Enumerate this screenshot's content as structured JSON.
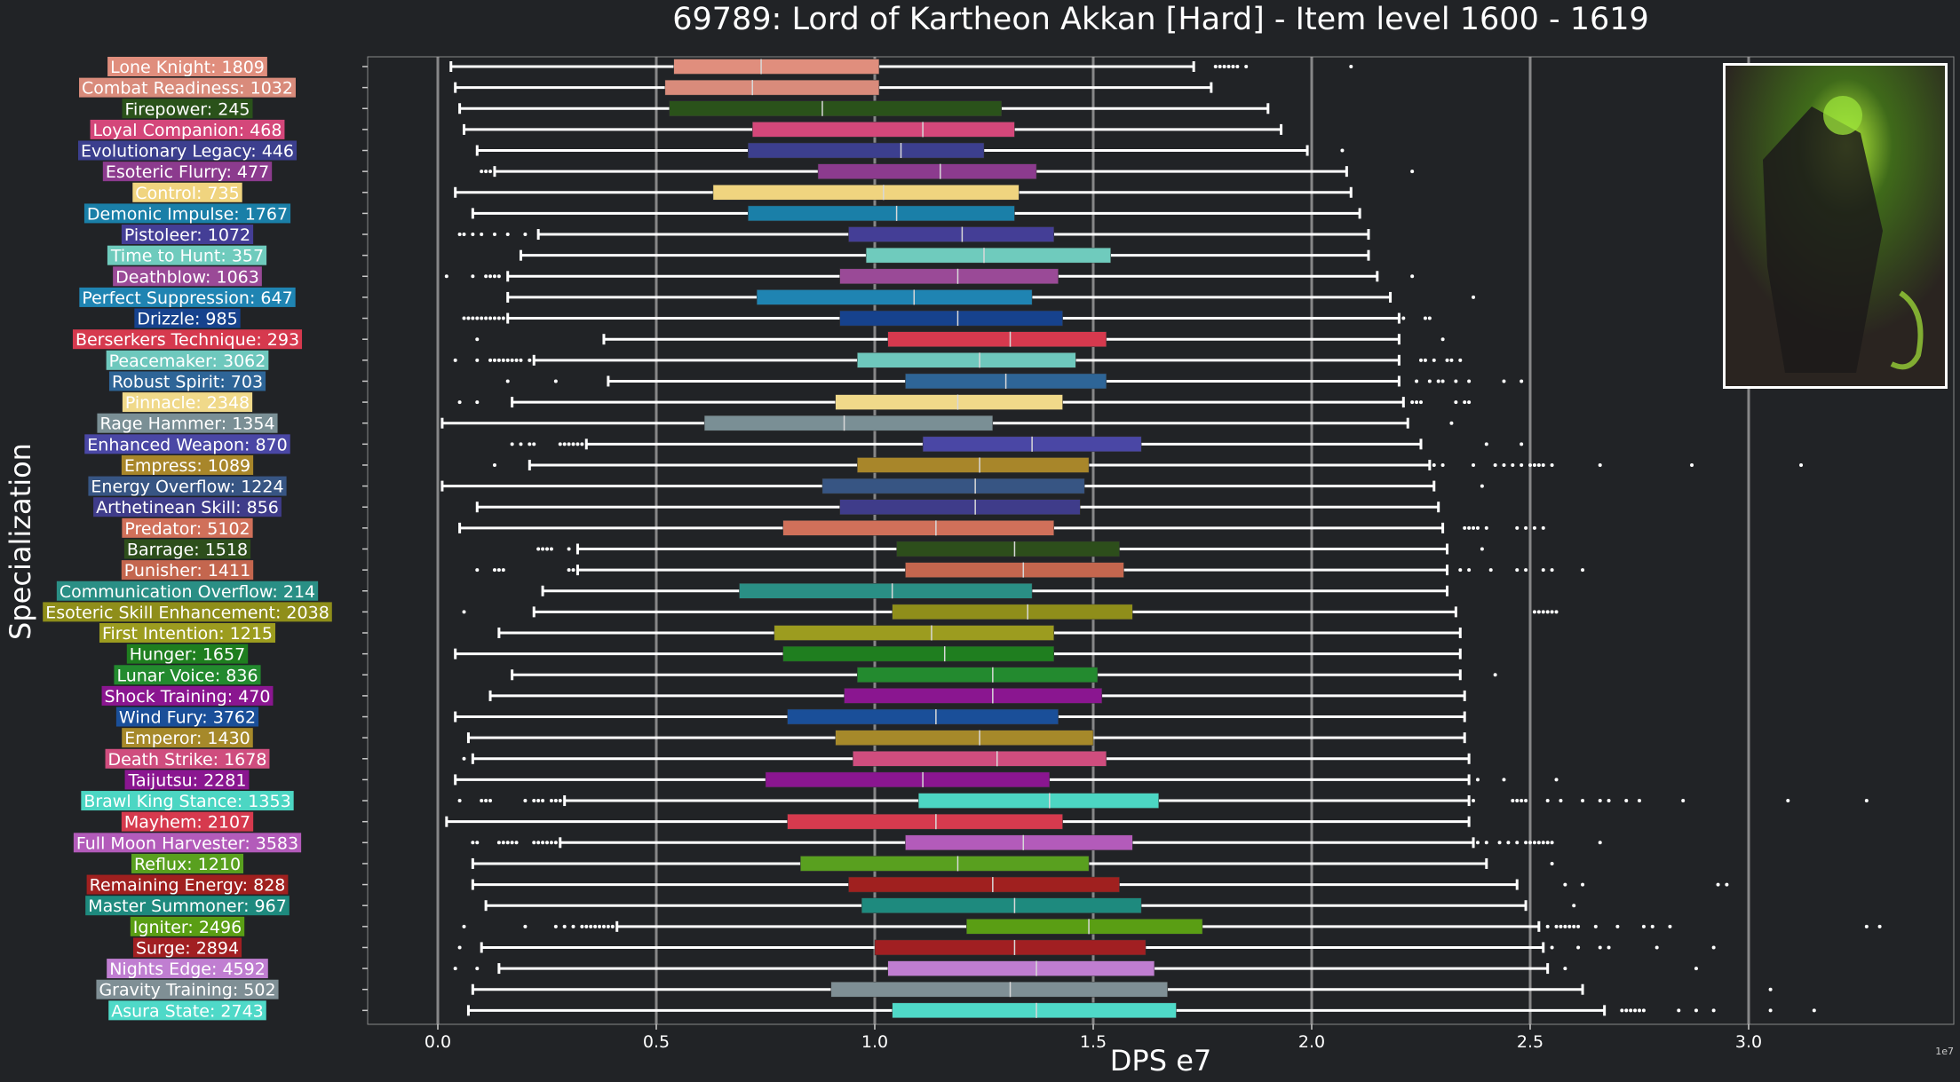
{
  "chart_data": {
    "type": "box",
    "title": "69789: Lord of Kartheon Akkan [Hard] - Item level 1600 - 1619",
    "xlabel": "DPS e7",
    "ylabel": "Specialization",
    "x_scale_note": "1e7",
    "xlim": [
      -0.16,
      3.42
    ],
    "xticks": [
      "0.0",
      "0.5",
      "1.0",
      "1.5",
      "2.0",
      "2.5",
      "3.0"
    ],
    "xtick_values": [
      0.0,
      0.5,
      1.0,
      1.5,
      2.0,
      2.5,
      3.0
    ],
    "grid": "vertical",
    "series": [
      {
        "label": "Lone Knight: 1809",
        "color": "#e08e7d",
        "whisker_low": 0.03,
        "q1": 0.54,
        "median": 0.74,
        "q3": 1.01,
        "whisker_high": 1.73,
        "outliers": [
          1.78,
          1.79,
          1.8,
          1.81,
          1.82,
          1.83,
          1.85,
          2.09
        ]
      },
      {
        "label": "Combat Readiness: 1032",
        "color": "#d98b7b",
        "whisker_low": 0.04,
        "q1": 0.52,
        "median": 0.72,
        "q3": 1.01,
        "whisker_high": 1.77,
        "outliers": []
      },
      {
        "label": "Firepower: 245",
        "color": "#2a521a",
        "whisker_low": 0.05,
        "q1": 0.53,
        "median": 0.88,
        "q3": 1.29,
        "whisker_high": 1.9,
        "outliers": []
      },
      {
        "label": "Loyal Companion: 468",
        "color": "#d4477a",
        "whisker_low": 0.06,
        "q1": 0.72,
        "median": 1.11,
        "q3": 1.32,
        "whisker_high": 1.93,
        "outliers": []
      },
      {
        "label": "Evolutionary Legacy: 446",
        "color": "#3c3f8e",
        "whisker_low": 0.09,
        "q1": 0.71,
        "median": 1.06,
        "q3": 1.25,
        "whisker_high": 1.99,
        "outliers": [
          2.07
        ]
      },
      {
        "label": "Esoteric Flurry: 477",
        "color": "#8c3b8e",
        "whisker_low": 0.13,
        "q1": 0.87,
        "median": 1.15,
        "q3": 1.37,
        "whisker_high": 2.08,
        "outliers": [
          0.1,
          0.11,
          0.12,
          2.23
        ]
      },
      {
        "label": "Control: 735",
        "color": "#f0d47f",
        "whisker_low": 0.04,
        "q1": 0.63,
        "median": 1.02,
        "q3": 1.33,
        "whisker_high": 2.09,
        "outliers": []
      },
      {
        "label": "Demonic Impulse: 1767",
        "color": "#1a7fa8",
        "whisker_low": 0.08,
        "q1": 0.71,
        "median": 1.05,
        "q3": 1.32,
        "whisker_high": 2.11,
        "outliers": []
      },
      {
        "label": "Pistoleer: 1072",
        "color": "#443e96",
        "whisker_low": 0.23,
        "q1": 0.94,
        "median": 1.2,
        "q3": 1.41,
        "whisker_high": 2.13,
        "outliers": [
          0.05,
          0.06,
          0.08,
          0.1,
          0.13,
          0.16,
          0.2
        ]
      },
      {
        "label": "Time to Hunt: 357",
        "color": "#6fcbbd",
        "whisker_low": 0.19,
        "q1": 0.98,
        "median": 1.25,
        "q3": 1.54,
        "whisker_high": 2.13,
        "outliers": []
      },
      {
        "label": "Deathblow: 1063",
        "color": "#9a4a97",
        "whisker_low": 0.16,
        "q1": 0.92,
        "median": 1.19,
        "q3": 1.42,
        "whisker_high": 2.15,
        "outliers": [
          0.02,
          0.08,
          0.11,
          0.12,
          0.13,
          0.14,
          2.23
        ]
      },
      {
        "label": "Perfect Suppression: 647",
        "color": "#1f84b2",
        "whisker_low": 0.16,
        "q1": 0.73,
        "median": 1.09,
        "q3": 1.36,
        "whisker_high": 2.18,
        "outliers": [
          2.37
        ]
      },
      {
        "label": "Drizzle: 985",
        "color": "#16428d",
        "whisker_low": 0.16,
        "q1": 0.92,
        "median": 1.19,
        "q3": 1.43,
        "whisker_high": 2.2,
        "outliers": [
          0.06,
          0.07,
          0.08,
          0.09,
          0.1,
          0.11,
          0.12,
          0.13,
          0.14,
          0.15,
          2.21,
          2.26,
          2.27
        ]
      },
      {
        "label": "Berserkers Technique: 293",
        "color": "#d6394e",
        "whisker_low": 0.38,
        "q1": 1.03,
        "median": 1.31,
        "q3": 1.53,
        "whisker_high": 2.2,
        "outliers": [
          0.09,
          2.3
        ]
      },
      {
        "label": "Peacemaker: 3062",
        "color": "#6ec8bd",
        "whisker_low": 0.22,
        "q1": 0.96,
        "median": 1.24,
        "q3": 1.46,
        "whisker_high": 2.2,
        "outliers": [
          0.04,
          0.09,
          0.12,
          0.13,
          0.14,
          0.15,
          0.16,
          0.17,
          0.18,
          0.19,
          0.21,
          2.25,
          2.26,
          2.28,
          2.31,
          2.32,
          2.34
        ]
      },
      {
        "label": "Robust Spirit: 703",
        "color": "#2e6597",
        "whisker_low": 0.39,
        "q1": 1.07,
        "median": 1.3,
        "q3": 1.53,
        "whisker_high": 2.2,
        "outliers": [
          0.16,
          0.27,
          2.24,
          2.27,
          2.29,
          2.3,
          2.33,
          2.36,
          2.44,
          2.48
        ]
      },
      {
        "label": "Pinnacle: 2348",
        "color": "#f0d98a",
        "whisker_low": 0.17,
        "q1": 0.91,
        "median": 1.19,
        "q3": 1.43,
        "whisker_high": 2.21,
        "outliers": [
          0.05,
          0.09,
          2.23,
          2.24,
          2.25,
          2.33,
          2.35,
          2.36
        ]
      },
      {
        "label": "Rage Hammer: 1354",
        "color": "#7a8f95",
        "whisker_low": 0.01,
        "q1": 0.61,
        "median": 0.93,
        "q3": 1.27,
        "whisker_high": 2.22,
        "outliers": [
          2.32
        ]
      },
      {
        "label": "Enhanced Weapon: 870",
        "color": "#4a47a5",
        "whisker_low": 0.34,
        "q1": 1.11,
        "median": 1.36,
        "q3": 1.61,
        "whisker_high": 2.25,
        "outliers": [
          0.17,
          0.19,
          0.21,
          0.22,
          0.28,
          0.29,
          0.3,
          0.31,
          0.32,
          0.33,
          2.4,
          2.48
        ]
      },
      {
        "label": "Empress: 1089",
        "color": "#a8862a",
        "whisker_low": 0.21,
        "q1": 0.96,
        "median": 1.24,
        "q3": 1.49,
        "whisker_high": 2.27,
        "outliers": [
          0.13,
          2.28,
          2.3,
          2.37,
          2.42,
          2.44,
          2.46,
          2.48,
          2.5,
          2.51,
          2.52,
          2.53,
          2.55,
          2.66,
          2.87,
          3.12
        ]
      },
      {
        "label": "Energy Overflow: 1224",
        "color": "#375583",
        "whisker_low": 0.01,
        "q1": 0.88,
        "median": 1.23,
        "q3": 1.48,
        "whisker_high": 2.28,
        "outliers": [
          2.39
        ]
      },
      {
        "label": "Arthetinean Skill: 856",
        "color": "#3f3c8a",
        "whisker_low": 0.09,
        "q1": 0.92,
        "median": 1.23,
        "q3": 1.47,
        "whisker_high": 2.29,
        "outliers": []
      },
      {
        "label": "Predator: 5102",
        "color": "#d0705a",
        "whisker_low": 0.05,
        "q1": 0.79,
        "median": 1.14,
        "q3": 1.41,
        "whisker_high": 2.3,
        "outliers": [
          2.35,
          2.36,
          2.37,
          2.38,
          2.4,
          2.47,
          2.49,
          2.51,
          2.53
        ]
      },
      {
        "label": "Barrage: 1518",
        "color": "#2d4e1b",
        "whisker_low": 0.32,
        "q1": 1.05,
        "median": 1.32,
        "q3": 1.56,
        "whisker_high": 2.31,
        "outliers": [
          0.23,
          0.24,
          0.25,
          0.26,
          0.3,
          2.39
        ]
      },
      {
        "label": "Punisher: 1411",
        "color": "#c4664e",
        "whisker_low": 0.32,
        "q1": 1.07,
        "median": 1.34,
        "q3": 1.57,
        "whisker_high": 2.31,
        "outliers": [
          0.09,
          0.13,
          0.14,
          0.15,
          0.3,
          0.31,
          2.34,
          2.36,
          2.41,
          2.47,
          2.49,
          2.53,
          2.55,
          2.62
        ]
      },
      {
        "label": "Communication Overflow: 214",
        "color": "#2a8f85",
        "whisker_low": 0.24,
        "q1": 0.69,
        "median": 1.04,
        "q3": 1.36,
        "whisker_high": 2.31,
        "outliers": []
      },
      {
        "label": "Esoteric Skill Enhancement: 2038",
        "color": "#8f8e1a",
        "whisker_low": 0.22,
        "q1": 1.04,
        "median": 1.35,
        "q3": 1.59,
        "whisker_high": 2.33,
        "outliers": [
          0.06,
          2.51,
          2.52,
          2.53,
          2.54,
          2.55,
          2.56
        ]
      },
      {
        "label": "First Intention: 1215",
        "color": "#9c9c1f",
        "whisker_low": 0.14,
        "q1": 0.77,
        "median": 1.13,
        "q3": 1.41,
        "whisker_high": 2.34,
        "outliers": []
      },
      {
        "label": "Hunger: 1657",
        "color": "#1f7e1f",
        "whisker_low": 0.04,
        "q1": 0.79,
        "median": 1.16,
        "q3": 1.41,
        "whisker_high": 2.34,
        "outliers": []
      },
      {
        "label": "Lunar Voice: 836",
        "color": "#238a2f",
        "whisker_low": 0.17,
        "q1": 0.96,
        "median": 1.27,
        "q3": 1.51,
        "whisker_high": 2.34,
        "outliers": [
          2.42
        ]
      },
      {
        "label": "Shock Training: 470",
        "color": "#8a1690",
        "whisker_low": 0.12,
        "q1": 0.93,
        "median": 1.27,
        "q3": 1.52,
        "whisker_high": 2.35,
        "outliers": []
      },
      {
        "label": "Wind Fury: 3762",
        "color": "#1a4f99",
        "whisker_low": 0.04,
        "q1": 0.8,
        "median": 1.14,
        "q3": 1.42,
        "whisker_high": 2.35,
        "outliers": []
      },
      {
        "label": "Emperor: 1430",
        "color": "#a6892a",
        "whisker_low": 0.07,
        "q1": 0.91,
        "median": 1.24,
        "q3": 1.5,
        "whisker_high": 2.35,
        "outliers": []
      },
      {
        "label": "Death Strike: 1678",
        "color": "#cf4d7e",
        "whisker_low": 0.08,
        "q1": 0.95,
        "median": 1.28,
        "q3": 1.53,
        "whisker_high": 2.36,
        "outliers": [
          0.06
        ]
      },
      {
        "label": "Taijutsu: 2281",
        "color": "#8a1690",
        "whisker_low": 0.04,
        "q1": 0.75,
        "median": 1.11,
        "q3": 1.4,
        "whisker_high": 2.36,
        "outliers": [
          2.38,
          2.44,
          2.56
        ]
      },
      {
        "label": "Brawl King Stance: 1353",
        "color": "#4cd6c3",
        "whisker_low": 0.29,
        "q1": 1.1,
        "median": 1.4,
        "q3": 1.65,
        "whisker_high": 2.36,
        "outliers": [
          0.05,
          0.1,
          0.11,
          0.12,
          0.2,
          0.22,
          0.23,
          0.24,
          0.26,
          0.27,
          0.28,
          2.37,
          2.46,
          2.47,
          2.48,
          2.49,
          2.54,
          2.57,
          2.62,
          2.66,
          2.68,
          2.72,
          2.75,
          2.85,
          3.09,
          3.27
        ]
      },
      {
        "label": "Mayhem: 2107",
        "color": "#d63a4e",
        "whisker_low": 0.02,
        "q1": 0.8,
        "median": 1.14,
        "q3": 1.43,
        "whisker_high": 2.36,
        "outliers": []
      },
      {
        "label": "Full Moon Harvester: 3583",
        "color": "#b35bba",
        "whisker_low": 0.28,
        "q1": 1.07,
        "median": 1.34,
        "q3": 1.59,
        "whisker_high": 2.37,
        "outliers": [
          0.08,
          0.09,
          0.14,
          0.15,
          0.16,
          0.17,
          0.18,
          0.22,
          0.23,
          0.24,
          0.25,
          0.26,
          0.27,
          2.38,
          2.4,
          2.43,
          2.45,
          2.47,
          2.49,
          2.5,
          2.51,
          2.52,
          2.53,
          2.54,
          2.55,
          2.66
        ]
      },
      {
        "label": "Reflux: 1210",
        "color": "#59a01f",
        "whisker_low": 0.08,
        "q1": 0.83,
        "median": 1.19,
        "q3": 1.49,
        "whisker_high": 2.4,
        "outliers": [
          2.55
        ]
      },
      {
        "label": "Remaining Energy: 828",
        "color": "#a0201f",
        "whisker_low": 0.08,
        "q1": 0.94,
        "median": 1.27,
        "q3": 1.56,
        "whisker_high": 2.47,
        "outliers": [
          2.58,
          2.62,
          2.93,
          2.95
        ]
      },
      {
        "label": "Master Summoner: 967",
        "color": "#1e8a7e",
        "whisker_low": 0.11,
        "q1": 0.97,
        "median": 1.32,
        "q3": 1.61,
        "whisker_high": 2.49,
        "outliers": [
          2.6
        ]
      },
      {
        "label": "Igniter: 2496",
        "color": "#5a9e14",
        "whisker_low": 0.41,
        "q1": 1.21,
        "median": 1.49,
        "q3": 1.75,
        "whisker_high": 2.52,
        "outliers": [
          0.06,
          0.2,
          0.27,
          0.29,
          0.31,
          0.33,
          0.34,
          0.35,
          0.36,
          0.37,
          0.38,
          0.39,
          0.4,
          2.54,
          2.56,
          2.57,
          2.58,
          2.59,
          2.6,
          2.61,
          2.65,
          2.7,
          2.76,
          2.78,
          2.82,
          3.27,
          3.3
        ]
      },
      {
        "label": "Surge: 2894",
        "color": "#a11f22",
        "whisker_low": 0.1,
        "q1": 1.0,
        "median": 1.32,
        "q3": 1.62,
        "whisker_high": 2.53,
        "outliers": [
          0.05,
          2.55,
          2.61,
          2.66,
          2.68,
          2.79,
          2.92
        ]
      },
      {
        "label": "Nights Edge: 4592",
        "color": "#c07ed1",
        "whisker_low": 0.14,
        "q1": 1.03,
        "median": 1.37,
        "q3": 1.64,
        "whisker_high": 2.54,
        "outliers": [
          0.04,
          0.09,
          2.58,
          2.88
        ]
      },
      {
        "label": "Gravity Training: 502",
        "color": "#7f8f95",
        "whisker_low": 0.08,
        "q1": 0.9,
        "median": 1.31,
        "q3": 1.67,
        "whisker_high": 2.62,
        "outliers": [
          3.05
        ]
      },
      {
        "label": "Asura State: 2743",
        "color": "#4fd9c8",
        "whisker_low": 0.07,
        "q1": 1.04,
        "median": 1.37,
        "q3": 1.69,
        "whisker_high": 2.67,
        "outliers": [
          2.71,
          2.72,
          2.73,
          2.74,
          2.75,
          2.76,
          2.84,
          2.88,
          2.92,
          3.05,
          3.15
        ]
      }
    ]
  }
}
